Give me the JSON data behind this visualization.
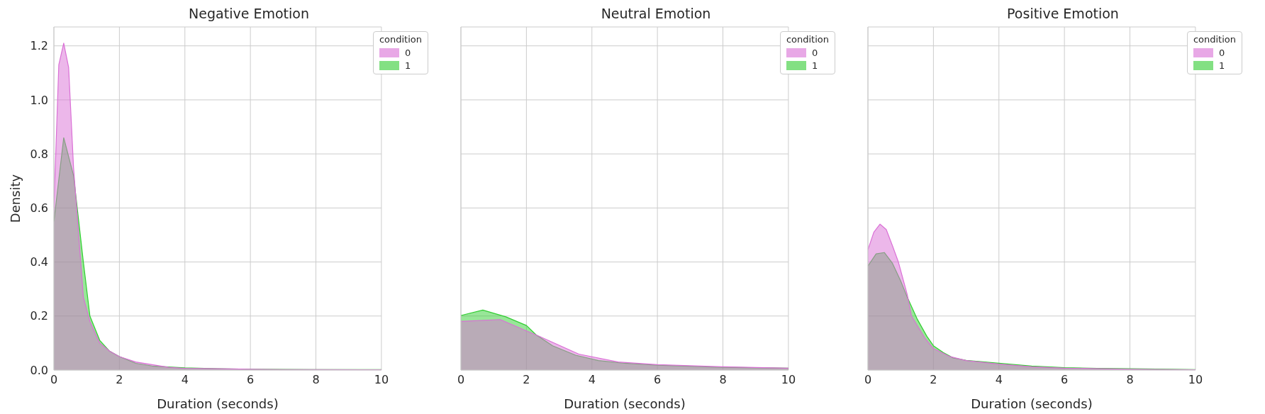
{
  "chart_data": [
    {
      "type": "area",
      "title": "Negative Emotion",
      "xlabel": "Duration (seconds)",
      "ylabel": "Density",
      "legend_title": "condition",
      "legend": "top right",
      "grid": true,
      "xlim": [
        0,
        10
      ],
      "xticks": [
        0,
        2,
        4,
        6,
        8,
        10
      ],
      "ylim": [
        0,
        1.27
      ],
      "yticks": [
        {
          "value": 0,
          "label": "0.0"
        },
        0.2,
        0.4,
        0.6,
        0.8,
        {
          "value": 1,
          "label": "1.0"
        },
        1.2
      ],
      "series": [
        {
          "name": "0",
          "color": "#da70d6",
          "x": [
            0,
            0.15,
            0.3,
            0.45,
            0.6,
            0.9,
            1.1,
            1.4,
            1.7,
            2,
            2.5,
            3,
            3.5,
            4,
            5,
            6,
            7,
            8,
            10
          ],
          "values": [
            0.6,
            1.13,
            1.21,
            1.12,
            0.75,
            0.27,
            0.18,
            0.1,
            0.07,
            0.05,
            0.03,
            0.02,
            0.01,
            0.006,
            0.005,
            0.003,
            0.002,
            0.002,
            0.001
          ]
        },
        {
          "name": "1",
          "color": "#32cd32",
          "x": [
            0,
            0.3,
            0.6,
            0.9,
            1.1,
            1.4,
            1.7,
            2,
            2.5,
            3,
            4,
            5,
            6,
            8,
            10
          ],
          "values": [
            0.55,
            0.86,
            0.72,
            0.4,
            0.2,
            0.11,
            0.07,
            0.05,
            0.025,
            0.015,
            0.008,
            0.005,
            0.003,
            0.002,
            0.002
          ]
        }
      ]
    },
    {
      "type": "area",
      "title": "Neutral Emotion",
      "xlabel": "Duration (seconds)",
      "legend_title": "condition",
      "legend": "top right",
      "grid": true,
      "tick_labels": "x",
      "xlim": [
        0,
        10
      ],
      "xticks": [
        0,
        2,
        4,
        6,
        8,
        10
      ],
      "ylim": [
        0,
        1.27
      ],
      "yticks": [
        0,
        0.2,
        0.4,
        0.6,
        0.8,
        1,
        1.2
      ],
      "series": [
        {
          "name": "0",
          "color": "#da70d6",
          "x": [
            0,
            1.2,
            2,
            2.3,
            3.6,
            4.8,
            6,
            8,
            10
          ],
          "values": [
            0.18,
            0.187,
            0.145,
            0.13,
            0.059,
            0.03,
            0.02,
            0.012,
            0.007
          ]
        },
        {
          "name": "1",
          "color": "#32cd32",
          "x": [
            0,
            0.67,
            1.37,
            2,
            2.3,
            2.8,
            3.5,
            4.2,
            5,
            6,
            8,
            10
          ],
          "values": [
            0.202,
            0.222,
            0.197,
            0.165,
            0.13,
            0.09,
            0.055,
            0.035,
            0.025,
            0.018,
            0.01,
            0.007
          ]
        }
      ]
    },
    {
      "type": "area",
      "title": "Positive Emotion",
      "xlabel": "Duration (seconds)",
      "legend_title": "condition",
      "legend": "top right",
      "grid": true,
      "tick_labels": "x",
      "xlim": [
        0,
        10
      ],
      "xticks": [
        0,
        2,
        4,
        6,
        8,
        10
      ],
      "ylim": [
        0,
        1.27
      ],
      "yticks": [
        0,
        0.2,
        0.4,
        0.6,
        0.8,
        1,
        1.2
      ],
      "series": [
        {
          "name": "0",
          "color": "#da70d6",
          "x": [
            0,
            0.18,
            0.37,
            0.56,
            0.75,
            0.93,
            1.2,
            1.33,
            1.53,
            1.73,
            2,
            2.5,
            3,
            4,
            5,
            6,
            8,
            10
          ],
          "values": [
            0.445,
            0.51,
            0.54,
            0.52,
            0.46,
            0.4,
            0.28,
            0.2,
            0.16,
            0.12,
            0.08,
            0.05,
            0.035,
            0.022,
            0.012,
            0.007,
            0.003,
            0.001
          ]
        },
        {
          "name": "1",
          "color": "#32cd32",
          "x": [
            0,
            0.25,
            0.5,
            0.75,
            1,
            1.2,
            1.5,
            1.8,
            2,
            2.3,
            2.6,
            3,
            4,
            5,
            6,
            7,
            8,
            10
          ],
          "values": [
            0.385,
            0.43,
            0.435,
            0.395,
            0.33,
            0.27,
            0.19,
            0.125,
            0.09,
            0.065,
            0.045,
            0.036,
            0.025,
            0.015,
            0.009,
            0.006,
            0.005,
            0.002
          ]
        }
      ]
    }
  ]
}
